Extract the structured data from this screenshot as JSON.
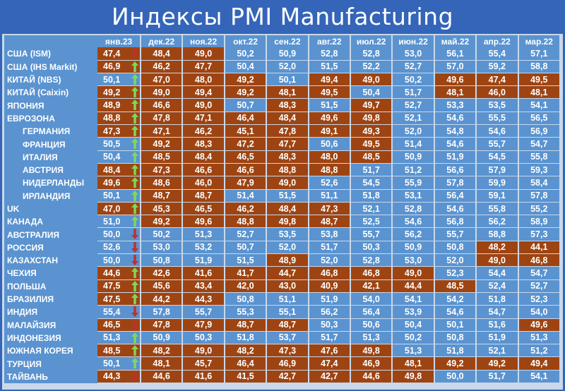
{
  "title": "Индексы PMI Manufacturing",
  "colors": {
    "background": "#3465b8",
    "expansion_cell": "#5a93d0",
    "contraction_cell": "#9e4412",
    "arrow_up": "#7ed957",
    "arrow_down": "#c0302a",
    "text": "#ffffff"
  },
  "chart_data": {
    "type": "table",
    "title": "Индексы PMI Manufacturing",
    "columns": [
      "янв.23",
      "дек.22",
      "ноя.22",
      "окт.22",
      "сен.22",
      "авг.22",
      "июл.22",
      "июн.22",
      "май.22",
      "апр.22",
      "мар.22"
    ],
    "threshold": 50,
    "rows": [
      {
        "country": "США (ISM)",
        "indent": false,
        "trend": "down",
        "values": [
          47.4,
          48.4,
          49.0,
          50.2,
          50.9,
          52.8,
          52.8,
          53.0,
          56.1,
          55.4,
          57.1
        ]
      },
      {
        "country": "США (IHS Markit)",
        "indent": false,
        "trend": "up",
        "values": [
          46.9,
          46.2,
          47.7,
          50.4,
          52.0,
          51.5,
          52.2,
          52.7,
          57.0,
          59.2,
          58.8
        ]
      },
      {
        "country": "КИТАЙ (NBS)",
        "indent": false,
        "trend": "up",
        "values": [
          50.1,
          47.0,
          48.0,
          49.2,
          50.1,
          49.4,
          49.0,
          50.2,
          49.6,
          47.4,
          49.5
        ]
      },
      {
        "country": "КИТАЙ (Caixin)",
        "indent": false,
        "trend": "up",
        "values": [
          49.2,
          49.0,
          49.4,
          49.2,
          48.1,
          49.5,
          50.4,
          51.7,
          48.1,
          46.0,
          48.1
        ]
      },
      {
        "country": "ЯПОНИЯ",
        "indent": false,
        "trend": "up",
        "values": [
          48.9,
          46.6,
          49.0,
          50.7,
          48.3,
          51.5,
          49.7,
          52.7,
          53.3,
          53.5,
          54.1
        ]
      },
      {
        "country": "ЕВРОЗОНА",
        "indent": false,
        "trend": "up",
        "values": [
          48.8,
          47.8,
          47.1,
          46.4,
          48.4,
          49.6,
          49.8,
          52.1,
          54.6,
          55.5,
          56.5
        ]
      },
      {
        "country": "ГЕРМАНИЯ",
        "indent": true,
        "trend": "up",
        "values": [
          47.3,
          47.1,
          46.2,
          45.1,
          47.8,
          49.1,
          49.3,
          52.0,
          54.8,
          54.6,
          56.9
        ]
      },
      {
        "country": "ФРАНЦИЯ",
        "indent": true,
        "trend": "up",
        "values": [
          50.5,
          49.2,
          48.3,
          47.2,
          47.7,
          50.6,
          49.5,
          51.4,
          54.6,
          55.7,
          54.7
        ]
      },
      {
        "country": "ИТАЛИЯ",
        "indent": true,
        "trend": "up",
        "values": [
          50.4,
          48.5,
          48.4,
          46.5,
          48.3,
          48.0,
          48.5,
          50.9,
          51.9,
          54.5,
          55.8
        ]
      },
      {
        "country": "АВСТРИЯ",
        "indent": true,
        "trend": "up",
        "values": [
          48.4,
          47.3,
          46.6,
          46.6,
          48.8,
          48.8,
          51.7,
          51.2,
          56.6,
          57.9,
          59.3
        ]
      },
      {
        "country": "НИДЕРЛАНДЫ",
        "indent": true,
        "trend": "up",
        "values": [
          49.6,
          48.6,
          46.0,
          47.9,
          49.0,
          52.6,
          54.5,
          55.9,
          57.8,
          59.9,
          58.4
        ]
      },
      {
        "country": "ИРЛАНДИЯ",
        "indent": true,
        "trend": "up",
        "values": [
          50.1,
          48.7,
          48.7,
          51.4,
          51.5,
          51.1,
          51.8,
          53.1,
          56.4,
          59.1,
          57.8
        ]
      },
      {
        "country": "UK",
        "indent": false,
        "trend": "up",
        "values": [
          47.0,
          45.3,
          46.5,
          46.2,
          48.4,
          47.3,
          52.1,
          52.8,
          54.6,
          55.8,
          55.2
        ]
      },
      {
        "country": "КАНАДА",
        "indent": false,
        "trend": "up",
        "values": [
          51.0,
          49.2,
          49.6,
          48.8,
          49.8,
          48.7,
          52.5,
          54.6,
          56.8,
          56.2,
          58.9
        ]
      },
      {
        "country": "АВСТРАЛИЯ",
        "indent": false,
        "trend": "down",
        "values": [
          50.0,
          50.2,
          51.3,
          52.7,
          53.5,
          53.8,
          55.7,
          56.2,
          55.7,
          58.8,
          57.3
        ]
      },
      {
        "country": "РОССИЯ",
        "indent": false,
        "trend": "down",
        "values": [
          52.6,
          53.0,
          53.2,
          50.7,
          52.0,
          51.7,
          50.3,
          50.9,
          50.8,
          48.2,
          44.1
        ]
      },
      {
        "country": "КАЗАХСТАН",
        "indent": false,
        "trend": "down",
        "values": [
          50.0,
          50.8,
          51.9,
          51.5,
          48.9,
          52.0,
          52.8,
          53.0,
          52.0,
          49.0,
          46.8
        ]
      },
      {
        "country": "ЧЕХИЯ",
        "indent": false,
        "trend": "up",
        "values": [
          44.6,
          42.6,
          41.6,
          41.7,
          44.7,
          46.8,
          46.8,
          49.0,
          52.3,
          54.4,
          54.7
        ]
      },
      {
        "country": "ПОЛЬША",
        "indent": false,
        "trend": "up",
        "values": [
          47.5,
          45.6,
          43.4,
          42.0,
          43.0,
          40.9,
          42.1,
          44.4,
          48.5,
          52.4,
          52.7
        ]
      },
      {
        "country": "БРАЗИЛИЯ",
        "indent": false,
        "trend": "up",
        "values": [
          47.5,
          44.2,
          44.3,
          50.8,
          51.1,
          51.9,
          54.0,
          54.1,
          54.2,
          51.8,
          52.3
        ]
      },
      {
        "country": "ИНДИЯ",
        "indent": false,
        "trend": "down",
        "values": [
          55.4,
          57.8,
          55.7,
          55.3,
          55.1,
          56.2,
          56.4,
          53.9,
          54.6,
          54.7,
          54.0
        ]
      },
      {
        "country": "МАЛАЙЗИЯ",
        "indent": false,
        "trend": "down",
        "values": [
          46.5,
          47.8,
          47.9,
          48.7,
          48.7,
          50.3,
          50.6,
          50.4,
          50.1,
          51.6,
          49.6
        ]
      },
      {
        "country": "ИНДОНЕЗИЯ",
        "indent": false,
        "trend": "up",
        "values": [
          51.3,
          50.9,
          50.3,
          51.8,
          53.7,
          51.7,
          51.3,
          50.2,
          50.8,
          51.9,
          51.3
        ]
      },
      {
        "country": "ЮЖНАЯ КОРЕЯ",
        "indent": false,
        "trend": "up",
        "values": [
          48.5,
          48.2,
          49.0,
          48.2,
          47.3,
          47.6,
          49.8,
          51.3,
          51.8,
          52.1,
          51.2
        ]
      },
      {
        "country": "ТУРЦИЯ",
        "indent": false,
        "trend": "up",
        "values": [
          50.1,
          48.1,
          45.7,
          46.4,
          46.9,
          47.4,
          46.9,
          48.1,
          49.2,
          49.2,
          49.4
        ]
      },
      {
        "country": "ТАЙВАНЬ",
        "indent": false,
        "trend": "down",
        "values": [
          44.3,
          44.6,
          41.6,
          41.5,
          42.7,
          42.7,
          44.6,
          49.8,
          50.0,
          51.7,
          54.1
        ]
      }
    ]
  }
}
